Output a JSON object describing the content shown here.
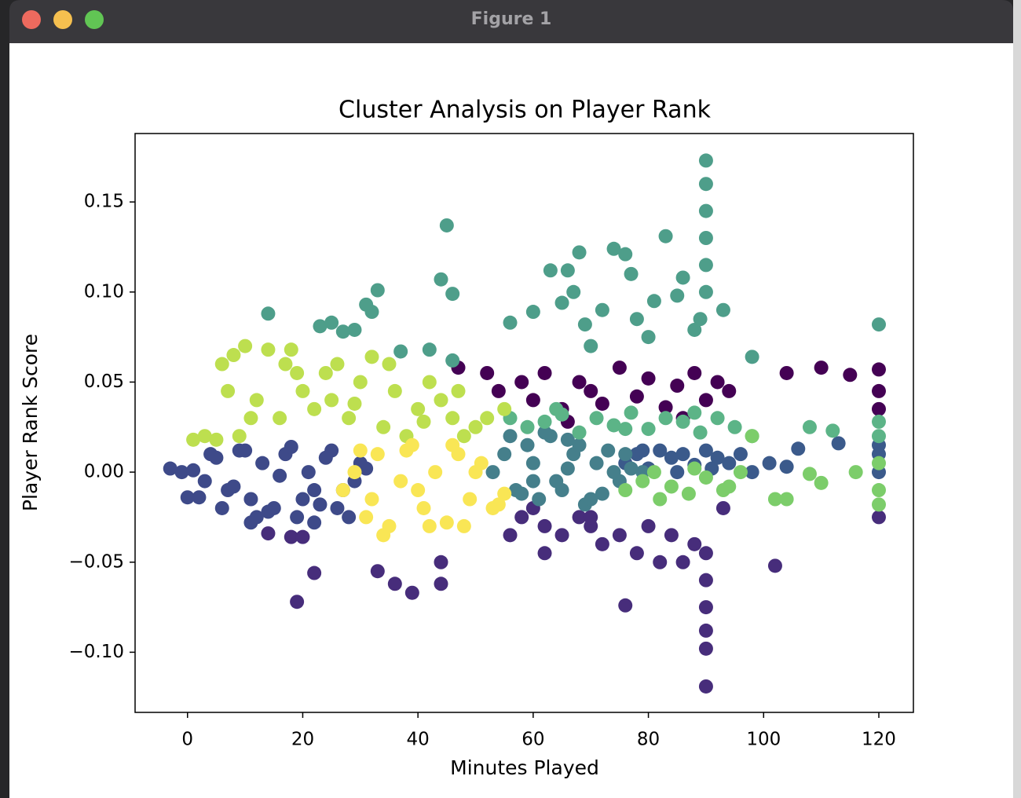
{
  "window_title": "Figure 1",
  "chart_data": {
    "type": "scatter",
    "title": "Cluster Analysis on Player Rank",
    "x_label": "Minutes Played",
    "y_label": "Player Rank Score",
    "xlim": [
      -9.1,
      126.0
    ],
    "ylim": [
      -0.1334,
      0.188
    ],
    "xticks": [
      0,
      20,
      40,
      60,
      80,
      100,
      120
    ],
    "yticks": [
      {
        "value": -0.1,
        "label": "−0.10"
      },
      {
        "value": -0.05,
        "label": "−0.05"
      },
      {
        "value": 0,
        "label": "0.00"
      },
      {
        "value": 0.05,
        "label": "0.05"
      },
      {
        "value": 0.1,
        "label": "0.10"
      },
      0.15
    ],
    "grid": false,
    "series": [
      {
        "color": "#440154",
        "x": [
          52,
          54,
          58,
          60,
          62,
          65,
          68,
          70,
          72,
          75,
          78,
          80,
          83,
          85,
          88,
          90,
          92,
          94,
          104,
          110,
          115,
          120,
          120,
          120,
          47,
          66,
          86
        ],
        "y": [
          0.055,
          0.045,
          0.05,
          0.04,
          0.055,
          0.035,
          0.05,
          0.045,
          0.038,
          0.058,
          0.042,
          0.052,
          0.036,
          0.048,
          0.055,
          0.04,
          0.05,
          0.045,
          0.055,
          0.058,
          0.054,
          0.057,
          0.045,
          0.035,
          0.058,
          0.028,
          0.03
        ]
      },
      {
        "color": "#472d7b",
        "x": [
          56,
          58,
          60,
          62,
          65,
          68,
          70,
          72,
          75,
          76,
          78,
          80,
          82,
          84,
          86,
          88,
          90,
          90,
          90,
          90,
          90,
          90,
          19,
          22,
          33,
          36,
          39,
          44,
          44,
          102,
          93,
          62,
          70,
          14,
          18,
          20,
          120
        ],
        "y": [
          -0.035,
          -0.025,
          -0.02,
          -0.03,
          -0.035,
          -0.025,
          -0.03,
          -0.04,
          -0.035,
          -0.074,
          -0.045,
          -0.03,
          -0.05,
          -0.035,
          -0.05,
          -0.04,
          -0.06,
          -0.075,
          -0.088,
          -0.098,
          -0.119,
          -0.045,
          -0.072,
          -0.056,
          -0.055,
          -0.062,
          -0.067,
          -0.062,
          -0.05,
          -0.052,
          -0.02,
          -0.045,
          -0.025,
          -0.034,
          -0.036,
          -0.036,
          -0.025
        ]
      },
      {
        "color": "#3e4a89",
        "x": [
          -3,
          -1,
          1,
          3,
          5,
          7,
          9,
          11,
          13,
          15,
          17,
          19,
          21,
          23,
          25,
          27,
          29,
          31,
          2,
          6,
          10,
          14,
          18,
          22,
          26,
          30,
          4,
          8,
          12,
          16,
          20,
          24,
          28,
          0,
          11,
          22
        ],
        "y": [
          0.002,
          0.0,
          0.001,
          -0.005,
          0.008,
          -0.01,
          0.012,
          -0.015,
          0.005,
          -0.02,
          0.01,
          -0.025,
          0.0,
          -0.018,
          0.012,
          -0.01,
          -0.005,
          0.002,
          -0.014,
          -0.02,
          0.012,
          -0.022,
          0.014,
          -0.028,
          -0.02,
          0.005,
          0.01,
          -0.008,
          -0.025,
          -0.002,
          -0.015,
          0.008,
          -0.025,
          -0.014,
          -0.028,
          -0.01
        ]
      },
      {
        "color": "#3b5a8b",
        "x": [
          76,
          78,
          80,
          82,
          84,
          86,
          88,
          90,
          92,
          94,
          96,
          98,
          101,
          104,
          106,
          113,
          120,
          120,
          120,
          79,
          85,
          91
        ],
        "y": [
          0.005,
          0.01,
          0.002,
          0.012,
          0.008,
          0.01,
          0.004,
          0.012,
          0.008,
          0.005,
          0.01,
          0.0,
          0.005,
          0.003,
          0.013,
          0.016,
          0.0,
          0.01,
          0.015,
          0.012,
          0.0,
          0.002
        ]
      },
      {
        "color": "#457f8b",
        "x": [
          53,
          55,
          57,
          59,
          61,
          63,
          65,
          67,
          69,
          71,
          73,
          75,
          77,
          79,
          56,
          60,
          64,
          68,
          72,
          76,
          58,
          62,
          66,
          70,
          74,
          60,
          66
        ],
        "y": [
          0.0,
          0.01,
          -0.01,
          0.015,
          -0.015,
          0.02,
          -0.01,
          0.01,
          -0.018,
          0.005,
          0.012,
          -0.005,
          0.002,
          0.0,
          0.02,
          0.005,
          -0.005,
          0.015,
          -0.012,
          0.01,
          -0.012,
          0.022,
          0.002,
          -0.015,
          0.0,
          -0.005,
          0.018
        ]
      },
      {
        "color": "#5cb487",
        "x": [
          56,
          59,
          62,
          65,
          68,
          71,
          74,
          77,
          80,
          83,
          86,
          89,
          92,
          95,
          98,
          108,
          112,
          120,
          120,
          64,
          76,
          88
        ],
        "y": [
          0.03,
          0.025,
          0.028,
          0.032,
          0.022,
          0.03,
          0.026,
          0.033,
          0.024,
          0.03,
          0.028,
          0.022,
          0.03,
          0.025,
          0.02,
          0.025,
          0.023,
          0.028,
          0.02,
          0.035,
          0.024,
          0.033
        ]
      },
      {
        "color": "#4e9e8a",
        "x": [
          14,
          23,
          25,
          27,
          29,
          31,
          32,
          33,
          37,
          44,
          45,
          46,
          56,
          60,
          63,
          65,
          66,
          67,
          68,
          69,
          70,
          72,
          74,
          76,
          77,
          78,
          80,
          81,
          83,
          85,
          86,
          88,
          89,
          90,
          90,
          90,
          90,
          90,
          90,
          93,
          98,
          120,
          46,
          42
        ],
        "y": [
          0.088,
          0.081,
          0.083,
          0.078,
          0.079,
          0.093,
          0.089,
          0.101,
          0.067,
          0.107,
          0.137,
          0.099,
          0.083,
          0.089,
          0.112,
          0.094,
          0.112,
          0.1,
          0.122,
          0.082,
          0.07,
          0.09,
          0.124,
          0.121,
          0.11,
          0.085,
          0.075,
          0.095,
          0.131,
          0.098,
          0.108,
          0.079,
          0.085,
          0.173,
          0.16,
          0.145,
          0.13,
          0.115,
          0.1,
          0.09,
          0.064,
          0.082,
          0.062,
          0.068
        ]
      },
      {
        "color": "#7ccd6a",
        "x": [
          76,
          79,
          81,
          84,
          87,
          90,
          93,
          96,
          98,
          102,
          104,
          108,
          110,
          116,
          120,
          120,
          120,
          82,
          88,
          94
        ],
        "y": [
          -0.01,
          -0.005,
          0.0,
          -0.008,
          -0.012,
          -0.003,
          -0.01,
          0.0,
          0.02,
          -0.015,
          -0.015,
          -0.001,
          -0.006,
          0.0,
          -0.01,
          -0.018,
          0.005,
          -0.015,
          0.002,
          -0.008
        ]
      },
      {
        "color": "#bddf4f",
        "x": [
          1,
          3,
          5,
          7,
          8,
          9,
          10,
          12,
          14,
          16,
          17,
          18,
          20,
          22,
          24,
          26,
          28,
          30,
          32,
          34,
          36,
          38,
          40,
          42,
          44,
          46,
          48,
          50,
          52,
          55,
          6,
          11,
          19,
          25,
          29,
          35,
          41,
          47
        ],
        "y": [
          0.018,
          0.02,
          0.018,
          0.045,
          0.065,
          0.02,
          0.07,
          0.04,
          0.068,
          0.03,
          0.06,
          0.068,
          0.045,
          0.035,
          0.055,
          0.06,
          0.03,
          0.05,
          0.064,
          0.025,
          0.045,
          0.02,
          0.035,
          0.05,
          0.04,
          0.03,
          0.02,
          0.025,
          0.03,
          0.035,
          0.06,
          0.03,
          0.055,
          0.04,
          0.038,
          0.06,
          0.028,
          0.045
        ]
      },
      {
        "color": "#f9e655",
        "x": [
          27,
          29,
          31,
          33,
          35,
          37,
          39,
          41,
          43,
          45,
          47,
          49,
          51,
          53,
          55,
          30,
          34,
          38,
          42,
          46,
          50,
          54,
          32,
          40,
          48
        ],
        "y": [
          -0.01,
          0.0,
          -0.025,
          0.01,
          -0.03,
          -0.005,
          0.015,
          -0.02,
          0.0,
          -0.028,
          0.01,
          -0.015,
          0.005,
          -0.02,
          -0.012,
          0.012,
          -0.035,
          0.012,
          -0.03,
          0.015,
          0.0,
          -0.018,
          -0.015,
          -0.01,
          -0.03
        ]
      }
    ]
  }
}
